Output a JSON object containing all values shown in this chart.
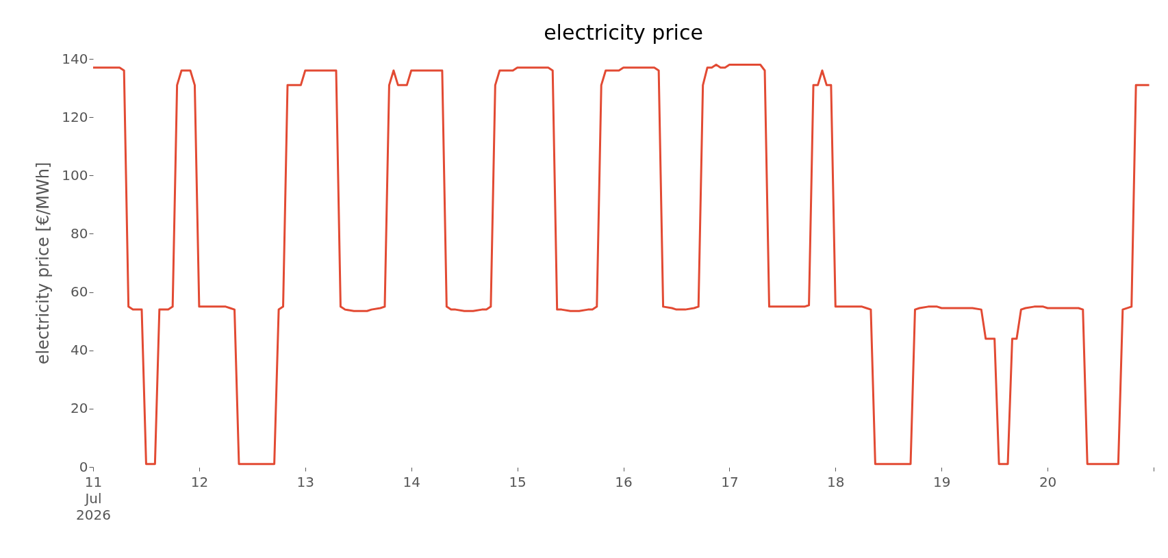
{
  "chart_data": {
    "type": "line",
    "title": "electricity price",
    "ylabel": "electricity price [€/MWh]",
    "x": [
      "2026-07-11T00:00",
      "2026-07-11T06:00",
      "2026-07-11T07:00",
      "2026-07-11T08:00",
      "2026-07-11T09:00",
      "2026-07-11T11:00",
      "2026-07-11T12:00",
      "2026-07-11T14:00",
      "2026-07-11T15:00",
      "2026-07-11T17:00",
      "2026-07-11T18:00",
      "2026-07-11T19:00",
      "2026-07-11T20:00",
      "2026-07-11T22:00",
      "2026-07-11T23:00",
      "2026-07-12T00:00",
      "2026-07-12T06:00",
      "2026-07-12T07:00",
      "2026-07-12T08:00",
      "2026-07-12T09:00",
      "2026-07-12T17:00",
      "2026-07-12T18:00",
      "2026-07-12T19:00",
      "2026-07-12T20:00",
      "2026-07-12T23:00",
      "2026-07-13T00:00",
      "2026-07-13T07:00",
      "2026-07-13T08:00",
      "2026-07-13T09:00",
      "2026-07-13T11:00",
      "2026-07-13T14:00",
      "2026-07-13T15:00",
      "2026-07-13T17:00",
      "2026-07-13T18:00",
      "2026-07-13T19:00",
      "2026-07-13T20:00",
      "2026-07-13T21:00",
      "2026-07-13T23:00",
      "2026-07-14T00:00",
      "2026-07-14T07:00",
      "2026-07-14T08:00",
      "2026-07-14T09:00",
      "2026-07-14T10:00",
      "2026-07-14T12:00",
      "2026-07-14T14:00",
      "2026-07-14T16:00",
      "2026-07-14T17:00",
      "2026-07-14T18:00",
      "2026-07-14T19:00",
      "2026-07-14T20:00",
      "2026-07-14T23:00",
      "2026-07-15T00:00",
      "2026-07-15T07:00",
      "2026-07-15T08:00",
      "2026-07-15T09:00",
      "2026-07-15T10:00",
      "2026-07-15T12:00",
      "2026-07-15T14:00",
      "2026-07-15T16:00",
      "2026-07-15T17:00",
      "2026-07-15T18:00",
      "2026-07-15T19:00",
      "2026-07-15T20:00",
      "2026-07-15T23:00",
      "2026-07-16T00:00",
      "2026-07-16T07:00",
      "2026-07-16T08:00",
      "2026-07-16T09:00",
      "2026-07-16T11:00",
      "2026-07-16T12:00",
      "2026-07-16T14:00",
      "2026-07-16T16:00",
      "2026-07-16T17:00",
      "2026-07-16T18:00",
      "2026-07-16T19:00",
      "2026-07-16T20:00",
      "2026-07-16T21:00",
      "2026-07-16T22:00",
      "2026-07-16T23:00",
      "2026-07-17T00:00",
      "2026-07-17T07:00",
      "2026-07-17T08:00",
      "2026-07-17T09:00",
      "2026-07-17T10:00",
      "2026-07-17T17:00",
      "2026-07-17T18:00",
      "2026-07-17T19:00",
      "2026-07-17T20:00",
      "2026-07-17T21:00",
      "2026-07-17T22:00",
      "2026-07-17T23:00",
      "2026-07-18T00:00",
      "2026-07-18T06:00",
      "2026-07-18T07:00",
      "2026-07-18T08:00",
      "2026-07-18T09:00",
      "2026-07-18T17:00",
      "2026-07-18T18:00",
      "2026-07-18T19:00",
      "2026-07-18T21:00",
      "2026-07-18T23:00",
      "2026-07-19T00:00",
      "2026-07-19T07:00",
      "2026-07-19T09:00",
      "2026-07-19T10:00",
      "2026-07-19T12:00",
      "2026-07-19T13:00",
      "2026-07-19T15:00",
      "2026-07-19T16:00",
      "2026-07-19T17:00",
      "2026-07-19T18:00",
      "2026-07-19T19:00",
      "2026-07-19T21:00",
      "2026-07-19T23:00",
      "2026-07-20T00:00",
      "2026-07-20T07:00",
      "2026-07-20T08:00",
      "2026-07-20T09:00",
      "2026-07-20T16:00",
      "2026-07-20T17:00",
      "2026-07-20T19:00",
      "2026-07-20T20:00",
      "2026-07-20T23:00"
    ],
    "series": [
      {
        "color": "#e24a33",
        "values": [
          137,
          137,
          136,
          55,
          54,
          54,
          1,
          1,
          54,
          54,
          55,
          131,
          136,
          136,
          131,
          55,
          55,
          54.5,
          54,
          1,
          1,
          54,
          55,
          131,
          131,
          136,
          136,
          55,
          54,
          53.5,
          53.5,
          54,
          54.5,
          55,
          131,
          136,
          131,
          131,
          136,
          136,
          55,
          54,
          54,
          53.5,
          53.5,
          54,
          54,
          55,
          131,
          136,
          136,
          137,
          137,
          136,
          54,
          54,
          53.5,
          53.5,
          54,
          54,
          55,
          131,
          136,
          136,
          137,
          137,
          136,
          55,
          54.5,
          54,
          54,
          54.5,
          55,
          131,
          137,
          137,
          138,
          137,
          137,
          138,
          138,
          136,
          55,
          55,
          55,
          55.5,
          131,
          131,
          136,
          131,
          131,
          55,
          55,
          54.5,
          54,
          1,
          1,
          54,
          54.5,
          55,
          55,
          54.5,
          54.5,
          54,
          44,
          44,
          1,
          1,
          44,
          44,
          54,
          54.5,
          55,
          55,
          54.5,
          54.5,
          54,
          1,
          1,
          54,
          55,
          131,
          131
        ]
      }
    ],
    "xticks": [
      {
        "value": "2026-07-11",
        "label": "11\nJul\n2026"
      },
      {
        "value": "2026-07-12",
        "label": "12"
      },
      {
        "value": "2026-07-13",
        "label": "13"
      },
      {
        "value": "2026-07-14",
        "label": "14"
      },
      {
        "value": "2026-07-15",
        "label": "15"
      },
      {
        "value": "2026-07-16",
        "label": "16"
      },
      {
        "value": "2026-07-17",
        "label": "17"
      },
      {
        "value": "2026-07-18",
        "label": "18"
      },
      {
        "value": "2026-07-19",
        "label": "19"
      },
      {
        "value": "2026-07-20",
        "label": "20"
      },
      {
        "value": "2026-07-21",
        "label": null
      }
    ],
    "xlim": [
      "2026-07-11",
      "2026-07-21"
    ],
    "ylim": [
      0,
      140
    ],
    "yticks": [
      0,
      20,
      40,
      60,
      80,
      100,
      120,
      140
    ],
    "grid": false
  }
}
